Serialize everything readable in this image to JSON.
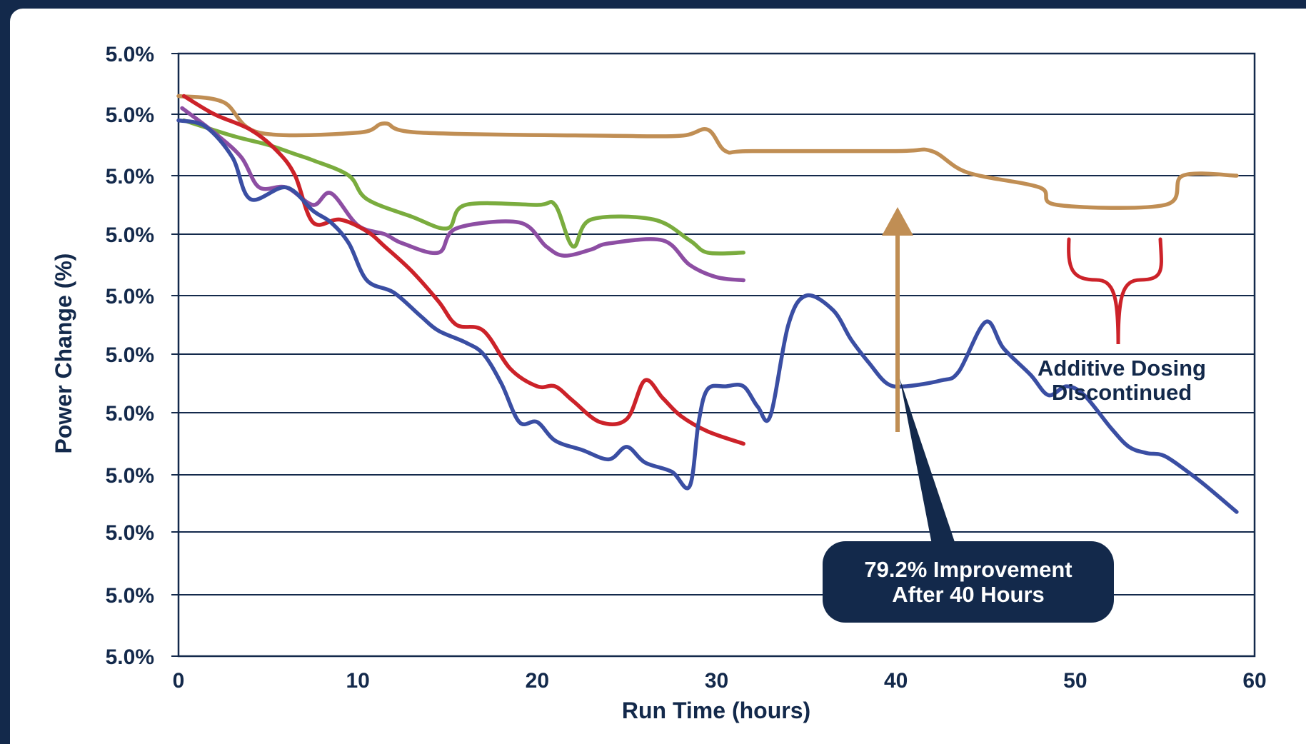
{
  "chart_data": {
    "type": "line",
    "title": "",
    "xlabel": "Run Time (hours)",
    "ylabel": "Power Change (%)",
    "xlim": [
      0,
      60
    ],
    "x_ticks": [
      0,
      10,
      20,
      30,
      40,
      50,
      60
    ],
    "y_tick_labels": [
      "5.0%",
      "5.0%",
      "5.0%",
      "5.0%",
      "5.0%",
      "5.0%",
      "5.0%",
      "5.0%",
      "5.0%",
      "5.0%",
      "5.0%"
    ],
    "y_levels": 10,
    "grid": true,
    "legend": "none",
    "colors": {
      "gold": "#c08e54",
      "green": "#7aac3e",
      "purple": "#8d4ea3",
      "red": "#cc2229",
      "blue": "#3a4ea3",
      "navy": "#13294b",
      "background": "#13294b"
    },
    "series": [
      {
        "color": "gold",
        "points": [
          [
            0,
            9.3
          ],
          [
            2.5,
            9.2
          ],
          [
            4.5,
            8.7
          ],
          [
            10,
            8.7
          ],
          [
            11.5,
            8.85
          ],
          [
            13.5,
            8.7
          ],
          [
            24,
            8.65
          ],
          [
            28,
            8.65
          ],
          [
            29.5,
            8.75
          ],
          [
            30.5,
            8.4
          ],
          [
            32,
            8.4
          ],
          [
            40,
            8.4
          ],
          [
            42,
            8.4
          ],
          [
            44,
            8.05
          ],
          [
            48,
            7.8
          ],
          [
            49,
            7.5
          ],
          [
            55,
            7.5
          ],
          [
            56,
            8.0
          ],
          [
            59,
            8.0
          ]
        ]
      },
      {
        "color": "green",
        "points": [
          [
            0.3,
            8.9
          ],
          [
            3,
            8.65
          ],
          [
            5,
            8.5
          ],
          [
            6.5,
            8.35
          ],
          [
            7.5,
            8.25
          ],
          [
            9.5,
            8.0
          ],
          [
            10.5,
            7.6
          ],
          [
            13,
            7.3
          ],
          [
            15,
            7.1
          ],
          [
            16,
            7.5
          ],
          [
            20,
            7.5
          ],
          [
            21,
            7.5
          ],
          [
            22,
            6.8
          ],
          [
            23,
            7.25
          ],
          [
            26.5,
            7.25
          ],
          [
            28.5,
            6.9
          ],
          [
            29.5,
            6.7
          ],
          [
            31.5,
            6.7
          ]
        ]
      },
      {
        "color": "purple",
        "points": [
          [
            0.2,
            9.1
          ],
          [
            2,
            8.7
          ],
          [
            3.5,
            8.3
          ],
          [
            4.5,
            7.8
          ],
          [
            6,
            7.8
          ],
          [
            7.5,
            7.5
          ],
          [
            8.5,
            7.7
          ],
          [
            10,
            7.15
          ],
          [
            11.5,
            7.0
          ],
          [
            12.5,
            6.85
          ],
          [
            14.5,
            6.7
          ],
          [
            15.5,
            7.1
          ],
          [
            19,
            7.2
          ],
          [
            20.5,
            6.8
          ],
          [
            21.5,
            6.65
          ],
          [
            23,
            6.75
          ],
          [
            24,
            6.85
          ],
          [
            27,
            6.9
          ],
          [
            28.5,
            6.5
          ],
          [
            30,
            6.3
          ],
          [
            31.5,
            6.25
          ]
        ]
      },
      {
        "color": "red",
        "points": [
          [
            0.3,
            9.3
          ],
          [
            2,
            9.0
          ],
          [
            4,
            8.75
          ],
          [
            5.5,
            8.4
          ],
          [
            6.5,
            8.0
          ],
          [
            7.5,
            7.2
          ],
          [
            9,
            7.25
          ],
          [
            10.5,
            7.05
          ],
          [
            11.5,
            6.8
          ],
          [
            13,
            6.4
          ],
          [
            14.5,
            5.9
          ],
          [
            15.5,
            5.5
          ],
          [
            17,
            5.4
          ],
          [
            18.5,
            4.75
          ],
          [
            20,
            4.45
          ],
          [
            21,
            4.45
          ],
          [
            22,
            4.2
          ],
          [
            23.5,
            3.85
          ],
          [
            25,
            3.9
          ],
          [
            26,
            4.55
          ],
          [
            27,
            4.25
          ],
          [
            28,
            3.95
          ],
          [
            29.5,
            3.7
          ],
          [
            31.5,
            3.5
          ]
        ]
      },
      {
        "color": "blue",
        "points": [
          [
            0,
            8.9
          ],
          [
            1.5,
            8.8
          ],
          [
            3,
            8.3
          ],
          [
            4,
            7.6
          ],
          [
            6,
            7.8
          ],
          [
            7.5,
            7.4
          ],
          [
            8.5,
            7.2
          ],
          [
            9.5,
            6.85
          ],
          [
            10.5,
            6.25
          ],
          [
            12,
            6.05
          ],
          [
            13.5,
            5.65
          ],
          [
            14.5,
            5.4
          ],
          [
            16,
            5.2
          ],
          [
            17,
            5.0
          ],
          [
            18,
            4.5
          ],
          [
            19,
            3.85
          ],
          [
            20,
            3.85
          ],
          [
            21,
            3.55
          ],
          [
            22.5,
            3.4
          ],
          [
            24,
            3.25
          ],
          [
            25,
            3.45
          ],
          [
            26,
            3.2
          ],
          [
            27.5,
            3.05
          ],
          [
            28.5,
            2.8
          ],
          [
            29,
            3.85
          ],
          [
            29.5,
            4.4
          ],
          [
            30.5,
            4.45
          ],
          [
            31.5,
            4.45
          ],
          [
            32.3,
            4.1
          ],
          [
            33,
            3.95
          ],
          [
            34,
            5.5
          ],
          [
            35,
            6.0
          ],
          [
            36.5,
            5.75
          ],
          [
            37.5,
            5.25
          ],
          [
            38.5,
            4.85
          ],
          [
            39.5,
            4.5
          ],
          [
            40.5,
            4.45
          ],
          [
            42.5,
            4.55
          ],
          [
            43.5,
            4.7
          ],
          [
            45,
            5.55
          ],
          [
            46,
            5.1
          ],
          [
            47.5,
            4.65
          ],
          [
            48.5,
            4.3
          ],
          [
            49.5,
            4.45
          ],
          [
            50.5,
            4.3
          ],
          [
            52,
            3.75
          ],
          [
            53,
            3.45
          ],
          [
            54,
            3.35
          ],
          [
            55,
            3.3
          ],
          [
            56.5,
            3.0
          ],
          [
            57.5,
            2.75
          ],
          [
            59,
            2.35
          ]
        ]
      }
    ],
    "annotations": {
      "improvement_line1": "79.2% Improvement",
      "improvement_line2": "After 40 Hours",
      "dosing_line1": "Additive Dosing",
      "dosing_line2": "Discontinued"
    }
  }
}
